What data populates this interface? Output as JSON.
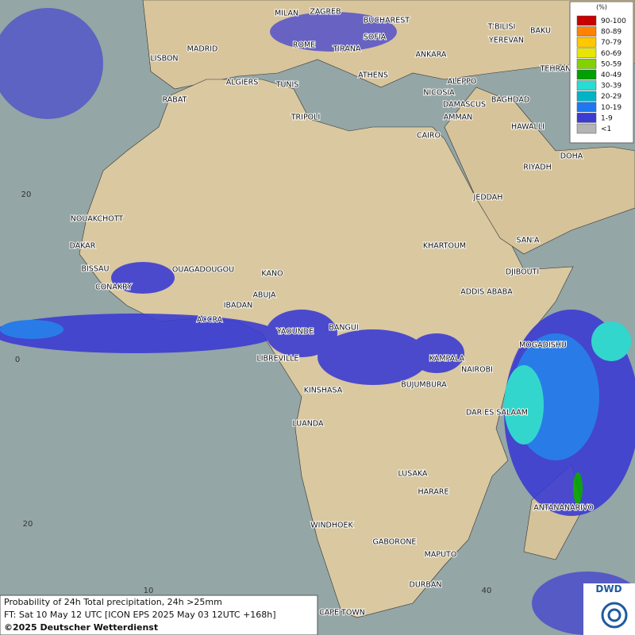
{
  "map": {
    "cities": [
      "MILAN",
      "ZAGREB",
      "BUCHAREST",
      "SOFIA",
      "ROME",
      "TIRANA",
      "MADRID",
      "LISBON",
      "ANKARA",
      "T'BILISI",
      "YEREVAN",
      "BAKU",
      "TEHRAN",
      "ATHENS",
      "ALGIERS",
      "TUNIS",
      "ALEPPO",
      "RABAT",
      "NICOSIA",
      "BAGHDAD",
      "DAMASCUS",
      "AMMAN",
      "TRIPOLI",
      "HAWALLI",
      "CAIRO",
      "DOHA",
      "RIYADH",
      "JEDDAH",
      "NOUAKCHOTT",
      "SAN'A",
      "KHARTOUM",
      "DAKAR",
      "BISSAU",
      "OUAGADOUGOU",
      "KANO",
      "DJIBOUTI",
      "CONAKRY",
      "ABUJA",
      "ADDIS ABABA",
      "IBADAN",
      "ACCRA",
      "BANGUI",
      "YAOUNDE",
      "MOGADISHU",
      "LIBREVILLE",
      "KAMPALA",
      "NAIROBI",
      "BUJUMBURA",
      "KINSHASA",
      "DAR ES SALAAM",
      "LUANDA",
      "LUSAKA",
      "HARARE",
      "ANTANANARIVO",
      "WINDHOEK",
      "GABORONE",
      "MAPUTO",
      "DURBAN",
      "CAPE TOWN"
    ],
    "grid_labels": [
      "20",
      "0",
      "20",
      "10",
      "40"
    ]
  },
  "legend": {
    "title": "(%)",
    "items": [
      {
        "label": "90-100",
        "color": "#c80000"
      },
      {
        "label": "80-89",
        "color": "#ff8200"
      },
      {
        "label": "70-79",
        "color": "#ffc800"
      },
      {
        "label": "60-69",
        "color": "#e6e600"
      },
      {
        "label": "50-59",
        "color": "#82d200"
      },
      {
        "label": "40-49",
        "color": "#00a000"
      },
      {
        "label": "30-39",
        "color": "#28dcd2"
      },
      {
        "label": "20-29",
        "color": "#00b4c8"
      },
      {
        "label": "10-19",
        "color": "#1e78f0"
      },
      {
        "label": "1-9",
        "color": "#3c3cd2"
      },
      {
        "label": "<1",
        "color": "#b4b4b4"
      }
    ]
  },
  "footer": {
    "lines": [
      "Probability of 24h Total precipitation, 24h >25mm",
      "FT: Sat 10 May 12 UTC [ICON EPS 2025 May 03 12UTC +168h]",
      "©2025 Deutscher Wetterdienst"
    ]
  },
  "logo": "DWD"
}
